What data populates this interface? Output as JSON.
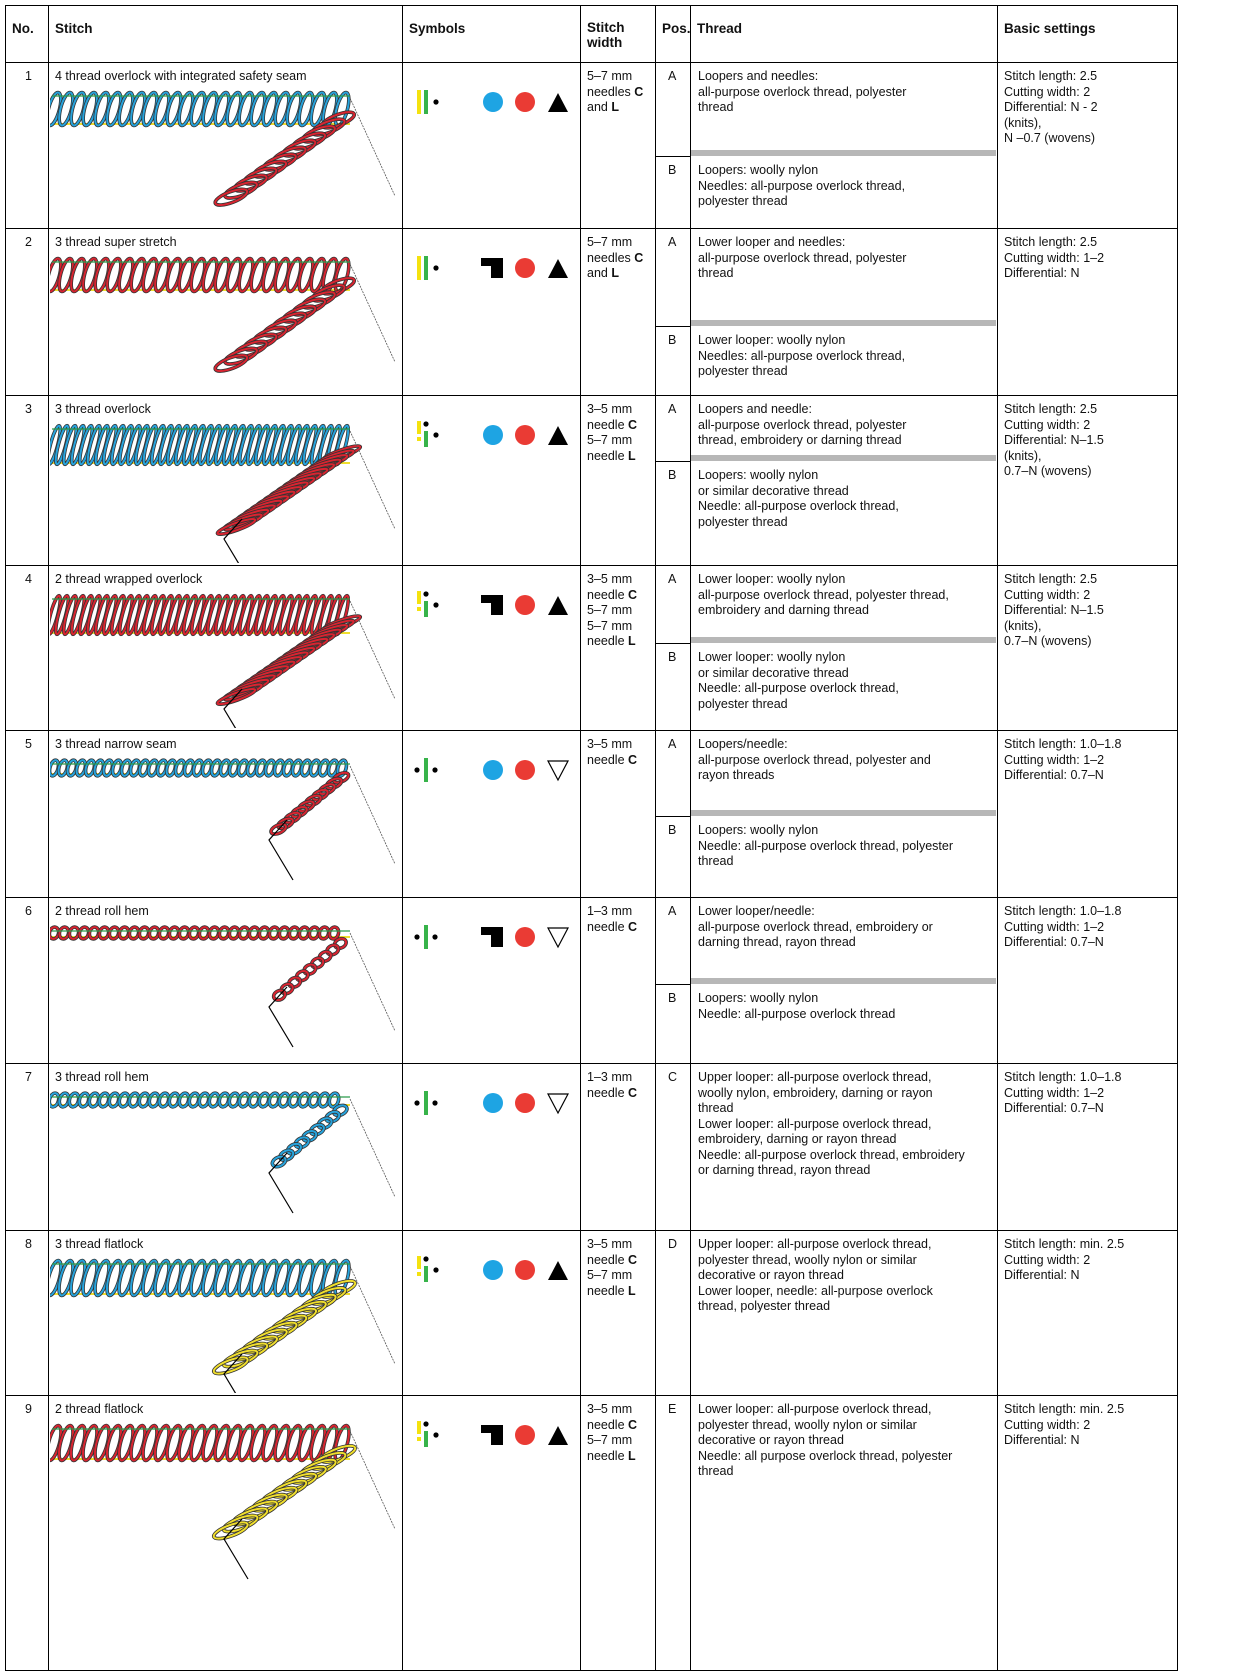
{
  "table": {
    "header": [
      "No.",
      "Stitch",
      "Symbols",
      "Stitch width",
      "Pos.",
      "Thread",
      "Basic settings"
    ],
    "rows": [
      {
        "no": "1",
        "stitch": "4 thread overlock with integrated safety seam",
        "width": [
          {
            "text": "5–7 mm"
          },
          {
            "text": "needles ",
            "bold": "C"
          },
          {
            "text": "and ",
            "bold": "L"
          }
        ],
        "threads": [
          {
            "pos": "A",
            "lines": [
              "Loopers and needles:",
              "all-purpose overlock thread, polyester",
              "thread"
            ]
          },
          {
            "pos": "B",
            "lines": [
              "Loopers: woolly nylon",
              "Needles: all-purpose overlock thread,",
              "polyester thread"
            ]
          }
        ],
        "settings": [
          "Stitch length: 2.5",
          "Cutting width: 2",
          "Differential: N - 2",
          "(knits),",
          "N –0.7 (wovens)"
        ]
      },
      {
        "no": "2",
        "stitch": "3 thread super stretch",
        "width": [
          {
            "text": "5–7 mm"
          },
          {
            "text": "needles ",
            "bold": "C"
          },
          {
            "text": "and ",
            "bold": "L"
          }
        ],
        "threads": [
          {
            "pos": "A",
            "lines": [
              "Lower looper and needles:",
              "all-purpose overlock thread, polyester",
              "thread"
            ]
          },
          {
            "pos": "B",
            "lines": [
              "Lower looper: woolly nylon",
              "Needles: all-purpose overlock thread,",
              "polyester thread"
            ]
          }
        ],
        "settings": [
          "Stitch length:  2.5",
          "Cutting width: 1–2",
          "Differential: N"
        ]
      },
      {
        "no": "3",
        "stitch": "3 thread overlock",
        "width": [
          {
            "text": "3–5 mm"
          },
          {
            "text": "needle ",
            "bold": "C"
          },
          {
            "text": "5–7 mm"
          },
          {
            "text": "needle ",
            "bold": "L"
          }
        ],
        "threads": [
          {
            "pos": "A",
            "lines": [
              "Loopers and needle:",
              "all-purpose overlock thread, polyester",
              "thread, embroidery or darning thread"
            ]
          },
          {
            "pos": "B",
            "lines": [
              "Loopers: woolly nylon",
              "or similar decorative thread",
              "Needle: all-purpose overlock thread,",
              "polyester thread"
            ]
          }
        ],
        "settings": [
          "Stitch length: 2.5",
          "Cutting width: 2",
          "Differential: N–1.5",
          "(knits),",
          "0.7–N  (wovens)"
        ]
      },
      {
        "no": "4",
        "stitch": "2 thread wrapped overlock",
        "width": [
          {
            "text": "3–5 mm"
          },
          {
            "text": "needle ",
            "bold": "C"
          },
          {
            "text": "5–7 mm"
          },
          {
            "text": "5–7 mm"
          },
          {
            "text": "needle ",
            "bold": "L"
          }
        ],
        "threads": [
          {
            "pos": "A",
            "lines": [
              "Lower looper: woolly nylon",
              "all-purpose overlock thread, polyester thread,",
              "embroidery and darning thread"
            ]
          },
          {
            "pos": "B",
            "lines": [
              "Lower looper: woolly nylon",
              "or similar decorative thread",
              "Needle: all-purpose overlock thread,",
              "polyester thread"
            ]
          }
        ],
        "settings": [
          "Stitch length: 2.5",
          "Cutting width: 2",
          "Differential: N–1.5",
          "(knits),",
          "0.7–N  (wovens)"
        ]
      },
      {
        "no": "5",
        "stitch": "3 thread narrow seam",
        "width": [
          {
            "text": "3–5 mm"
          },
          {
            "text": "needle ",
            "bold": "C"
          }
        ],
        "threads": [
          {
            "pos": "A",
            "lines": [
              "Loopers/needle:",
              "all-purpose overlock thread, polyester and",
              "rayon threads"
            ]
          },
          {
            "pos": "B",
            "lines": [
              "Loopers: woolly nylon",
              "Needle: all-purpose overlock thread, polyester",
              "thread"
            ]
          }
        ],
        "settings": [
          "Stitch length: 1.0–1.8",
          "Cutting width: 1–2",
          "Differential: 0.7–N"
        ]
      },
      {
        "no": "6",
        "stitch": "2 thread roll hem",
        "width": [
          {
            "text": "1–3 mm"
          },
          {
            "text": "needle ",
            "bold": "C"
          }
        ],
        "threads": [
          {
            "pos": "A",
            "lines": [
              "Lower looper/needle:",
              "all-purpose overlock thread, embroidery or",
              "darning thread, rayon thread"
            ]
          },
          {
            "pos": "B",
            "lines": [
              "Loopers: woolly nylon",
              "Needle: all-purpose overlock thread"
            ]
          }
        ],
        "settings": [
          "Stitch length: 1.0–1.8",
          "Cutting width: 1–2",
          "Differential: 0.7–N"
        ]
      },
      {
        "no": "7",
        "stitch": "3 thread roll hem",
        "width": [
          {
            "text": "1–3 mm"
          },
          {
            "text": "needle ",
            "bold": "C"
          }
        ],
        "threads": [
          {
            "pos": "C",
            "lines": [
              "Upper looper: all-purpose overlock thread,",
              "woolly nylon, embroidery, darning or rayon",
              "thread",
              "Lower looper: all-purpose overlock thread,",
              "embroidery, darning or rayon thread",
              "Needle: all-purpose overlock thread, embroidery",
              "or darning thread, rayon thread"
            ]
          }
        ],
        "settings": [
          "Stitch length: 1.0–1.8",
          "Cutting width: 1–2",
          "Differential: 0.7–N"
        ]
      },
      {
        "no": "8",
        "stitch": "3 thread flatlock",
        "width": [
          {
            "text": "3–5 mm"
          },
          {
            "text": "needle ",
            "bold": "C"
          },
          {
            "text": "5–7 mm"
          },
          {
            "text": "needle ",
            "bold": "L"
          }
        ],
        "threads": [
          {
            "pos": "D",
            "lines": [
              "Upper looper: all-purpose overlock thread,",
              "polyester thread, woolly nylon or similar",
              "decorative or rayon thread",
              "Lower looper, needle: all-purpose overlock",
              "thread, polyester thread"
            ]
          }
        ],
        "settings": [
          "Stitch length: min. 2.5",
          "Cutting width: 2",
          "Differential: N"
        ]
      },
      {
        "no": "9",
        "stitch": "2 thread flatlock",
        "width": [
          {
            "text": "3–5 mm"
          },
          {
            "text": "needle ",
            "bold": "C"
          },
          {
            "text": "5–7 mm"
          },
          {
            "text": "needle ",
            "bold": "L"
          }
        ],
        "threads": [
          {
            "pos": "E",
            "lines": [
              "Lower looper: all-purpose overlock thread,",
              "polyester thread, woolly nylon or similar",
              "decorative or rayon thread",
              "Needle: all purpose overlock thread, polyester",
              "thread"
            ]
          }
        ],
        "settings": [
          "Stitch length: min. 2.5",
          "Cutting width: 2",
          "Differential: N"
        ]
      }
    ]
  }
}
